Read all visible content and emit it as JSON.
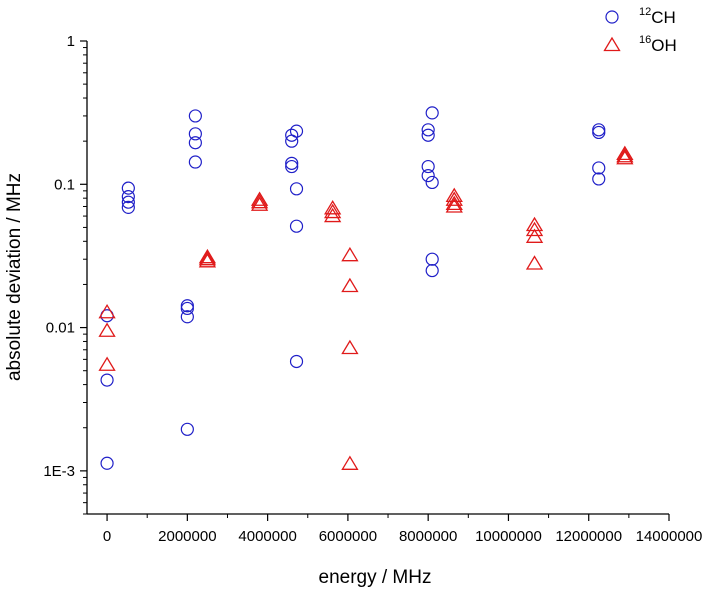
{
  "chart_data": {
    "type": "scatter",
    "title": "",
    "xlabel": "energy / MHz",
    "ylabel": "absolute deviation / MHz",
    "xlim": [
      -500000,
      14000000
    ],
    "ylim": [
      0.0005,
      1
    ],
    "yscale": "log",
    "grid": false,
    "legend_position": "top-right",
    "x_ticks": [
      {
        "value": 0,
        "label": "0"
      },
      {
        "value": 2000000,
        "label": "2000000"
      },
      {
        "value": 4000000,
        "label": "4000000"
      },
      {
        "value": 6000000,
        "label": "6000000"
      },
      {
        "value": 8000000,
        "label": "8000000"
      },
      {
        "value": 10000000,
        "label": "10000000"
      },
      {
        "value": 12000000,
        "label": "12000000"
      },
      {
        "value": 14000000,
        "label": "14000000"
      }
    ],
    "y_ticks": [
      {
        "value": 0.001,
        "label": "1E-3"
      },
      {
        "value": 0.01,
        "label": "0.01"
      },
      {
        "value": 0.1,
        "label": "0.1"
      },
      {
        "value": 1,
        "label": "1"
      }
    ],
    "series": [
      {
        "name": "CH",
        "legend_prefix": "12",
        "legend_main": "CH",
        "marker": "circle",
        "color": "#1f1fc8",
        "points": [
          {
            "x": 0,
            "y": 0.0121
          },
          {
            "x": 0,
            "y": 0.0043
          },
          {
            "x": 0,
            "y": 0.00113
          },
          {
            "x": 530000,
            "y": 0.094
          },
          {
            "x": 530000,
            "y": 0.082
          },
          {
            "x": 530000,
            "y": 0.075
          },
          {
            "x": 530000,
            "y": 0.069
          },
          {
            "x": 2000000,
            "y": 0.0142
          },
          {
            "x": 2000000,
            "y": 0.0136
          },
          {
            "x": 2000000,
            "y": 0.0119
          },
          {
            "x": 2000000,
            "y": 0.00195
          },
          {
            "x": 2200000,
            "y": 0.3
          },
          {
            "x": 2200000,
            "y": 0.225
          },
          {
            "x": 2200000,
            "y": 0.195
          },
          {
            "x": 2200000,
            "y": 0.143
          },
          {
            "x": 4600000,
            "y": 0.22
          },
          {
            "x": 4600000,
            "y": 0.2
          },
          {
            "x": 4600000,
            "y": 0.14
          },
          {
            "x": 4600000,
            "y": 0.133
          },
          {
            "x": 4720000,
            "y": 0.235
          },
          {
            "x": 4720000,
            "y": 0.093
          },
          {
            "x": 4720000,
            "y": 0.051
          },
          {
            "x": 4720000,
            "y": 0.0058
          },
          {
            "x": 8000000,
            "y": 0.24
          },
          {
            "x": 8000000,
            "y": 0.22
          },
          {
            "x": 8000000,
            "y": 0.133
          },
          {
            "x": 8000000,
            "y": 0.115
          },
          {
            "x": 8100000,
            "y": 0.315
          },
          {
            "x": 8100000,
            "y": 0.103
          },
          {
            "x": 8100000,
            "y": 0.03
          },
          {
            "x": 8100000,
            "y": 0.025
          },
          {
            "x": 12250000,
            "y": 0.24
          },
          {
            "x": 12250000,
            "y": 0.23
          },
          {
            "x": 12250000,
            "y": 0.13
          },
          {
            "x": 12250000,
            "y": 0.109
          }
        ]
      },
      {
        "name": "OH",
        "legend_prefix": "16",
        "legend_main": "OH",
        "marker": "triangle",
        "color": "#e01a1a",
        "points": [
          {
            "x": 0,
            "y": 0.0128
          },
          {
            "x": 0,
            "y": 0.0095
          },
          {
            "x": 0,
            "y": 0.0055
          },
          {
            "x": 2500000,
            "y": 0.031
          },
          {
            "x": 2500000,
            "y": 0.03
          },
          {
            "x": 2500000,
            "y": 0.029
          },
          {
            "x": 3800000,
            "y": 0.078
          },
          {
            "x": 3800000,
            "y": 0.075
          },
          {
            "x": 3800000,
            "y": 0.072
          },
          {
            "x": 5620000,
            "y": 0.068
          },
          {
            "x": 5620000,
            "y": 0.064
          },
          {
            "x": 5620000,
            "y": 0.06
          },
          {
            "x": 6050000,
            "y": 0.032
          },
          {
            "x": 6050000,
            "y": 0.0195
          },
          {
            "x": 6050000,
            "y": 0.0072
          },
          {
            "x": 6050000,
            "y": 0.00112
          },
          {
            "x": 8650000,
            "y": 0.083
          },
          {
            "x": 8650000,
            "y": 0.078
          },
          {
            "x": 8650000,
            "y": 0.073
          },
          {
            "x": 8650000,
            "y": 0.07
          },
          {
            "x": 10650000,
            "y": 0.052
          },
          {
            "x": 10650000,
            "y": 0.048
          },
          {
            "x": 10650000,
            "y": 0.043
          },
          {
            "x": 10650000,
            "y": 0.028
          },
          {
            "x": 12900000,
            "y": 0.163
          },
          {
            "x": 12900000,
            "y": 0.157
          },
          {
            "x": 12900000,
            "y": 0.152
          }
        ]
      }
    ]
  }
}
